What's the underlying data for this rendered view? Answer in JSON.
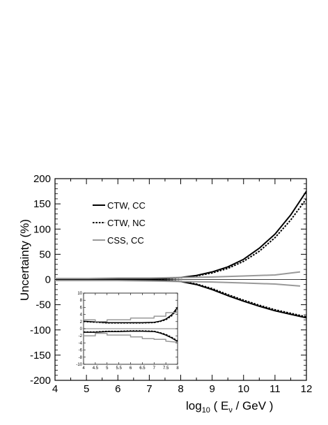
{
  "chart_data": [
    {
      "type": "line",
      "ylabel": "Uncertainty (%)",
      "xlabel": {
        "prefix": "log",
        "sub": "10",
        "mid": " ( E",
        "nu": "ν",
        "suffix": " / GeV )"
      },
      "xlim": [
        4,
        12
      ],
      "ylim": [
        -200,
        200
      ],
      "xticks": [
        "4",
        "5",
        "6",
        "7",
        "8",
        "9",
        "10",
        "11",
        "12"
      ],
      "yticks": [
        "200",
        "150",
        "100",
        "50",
        "0",
        "-50",
        "-100",
        "-150",
        "-200"
      ],
      "legend": {
        "placement": "top-left"
      },
      "grid": false,
      "series": [
        {
          "name": "CTW, CC",
          "style": "solid",
          "color": "#000000",
          "upper": {
            "x": [
              4,
              5,
              6,
              7,
              7.5,
              8,
              8.5,
              9,
              9.5,
              10,
              10.5,
              11,
              11.5,
              12
            ],
            "y": [
              0.5,
              0.5,
              0.7,
              1,
              2,
              4,
              8,
              15,
              25,
              40,
              62,
              90,
              128,
              175
            ]
          },
          "lower": {
            "x": [
              4,
              5,
              6,
              7,
              7.5,
              8,
              8.5,
              9,
              9.5,
              10,
              10.5,
              11,
              11.5,
              12
            ],
            "y": [
              -0.5,
              -0.5,
              -0.7,
              -1,
              -2,
              -4,
              -10,
              -20,
              -32,
              -43,
              -53,
              -62,
              -69,
              -76
            ]
          }
        },
        {
          "name": "CTW, NC",
          "style": "dotted",
          "color": "#000000",
          "upper": {
            "x": [
              4,
              5,
              6,
              7,
              7.5,
              8,
              8.5,
              9,
              9.5,
              10,
              10.5,
              11,
              11.5,
              12
            ],
            "y": [
              0.5,
              0.5,
              0.6,
              0.9,
              1.8,
              3.5,
              7,
              13,
              22,
              36,
              56,
              83,
              118,
              160
            ]
          },
          "lower": {
            "x": [
              4,
              5,
              6,
              7,
              7.5,
              8,
              8.5,
              9,
              9.5,
              10,
              10.5,
              11,
              11.5,
              12
            ],
            "y": [
              -0.5,
              -0.5,
              -0.6,
              -0.9,
              -1.8,
              -3.5,
              -9,
              -18,
              -30,
              -41,
              -51,
              -60,
              -67,
              -74
            ]
          }
        },
        {
          "name": "CSS, CC",
          "style": "solid",
          "color": "#999999",
          "upper": {
            "x": [
              4,
              5,
              6,
              7,
              8,
              9,
              10,
              11,
              11.8
            ],
            "y": [
              2,
              2,
              3,
              3,
              4,
              5,
              7,
              9,
              15
            ]
          },
          "lower": {
            "x": [
              4,
              5,
              6,
              7,
              8,
              9,
              10,
              11,
              11.8
            ],
            "y": [
              -2,
              -2,
              -2,
              -3,
              -4,
              -5,
              -7,
              -9,
              -13
            ]
          }
        }
      ]
    },
    {
      "type": "line",
      "xlim": [
        4,
        8
      ],
      "ylim": [
        -10,
        10
      ],
      "xticks": [
        "4",
        "4.5",
        "5",
        "5.5",
        "6",
        "6.5",
        "7",
        "7.5",
        "8"
      ],
      "yticks": [
        "10",
        "8",
        "6",
        "4",
        "2",
        "0",
        "-2",
        "-4",
        "-6",
        "-8",
        "-10"
      ],
      "series": [
        {
          "style": "solid",
          "color": "#000000",
          "upper": {
            "x": [
              4,
              4.5,
              5,
              5.5,
              6,
              6.5,
              7,
              7.25,
              7.5,
              7.75,
              8
            ],
            "y": [
              2.1,
              1.9,
              1.7,
              1.7,
              1.7,
              1.7,
              1.8,
              2.1,
              2.7,
              3.9,
              6.0
            ]
          },
          "lower": {
            "x": [
              4,
              4.5,
              5,
              5.5,
              6,
              6.5,
              7,
              7.25,
              7.5,
              7.75,
              8
            ],
            "y": [
              -1.0,
              -1.0,
              -0.8,
              -0.8,
              -0.7,
              -0.7,
              -0.8,
              -1.2,
              -1.8,
              -2.6,
              -3.6
            ]
          }
        },
        {
          "style": "dotted",
          "color": "#000000",
          "upper": {
            "x": [
              4,
              4.5,
              5,
              5.5,
              6,
              6.5,
              7,
              7.25,
              7.5,
              7.75,
              8
            ],
            "y": [
              2.0,
              1.8,
              1.6,
              1.6,
              1.6,
              1.6,
              1.7,
              2.0,
              2.5,
              3.6,
              5.5
            ]
          },
          "lower": {
            "x": [
              4,
              4.5,
              5,
              5.5,
              6,
              6.5,
              7,
              7.25,
              7.5,
              7.75,
              8
            ],
            "y": [
              -0.9,
              -0.9,
              -0.7,
              -0.7,
              -0.6,
              -0.6,
              -0.7,
              -1.1,
              -1.6,
              -2.4,
              -3.4
            ]
          }
        },
        {
          "style": "solid",
          "color": "#999999",
          "upper": {
            "x": [
              4,
              4.5,
              4.5,
              5,
              5,
              6,
              6,
              7,
              7,
              7.5,
              7.5,
              8
            ],
            "y": [
              2.5,
              2.5,
              2.0,
              2.0,
              2.5,
              2.5,
              3.0,
              3.0,
              3.5,
              3.5,
              4.5,
              4.5
            ]
          },
          "lower": {
            "x": [
              4,
              4.5,
              4.5,
              5,
              5,
              6,
              6,
              6.5,
              6.5,
              7,
              7,
              7.5,
              7.5,
              8
            ],
            "y": [
              -2.0,
              -2.0,
              -1.3,
              -1.3,
              -1.8,
              -1.8,
              -2.3,
              -2.3,
              -2.8,
              -2.8,
              -3.0,
              -3.0,
              -3.5,
              -3.8
            ]
          }
        }
      ]
    }
  ]
}
